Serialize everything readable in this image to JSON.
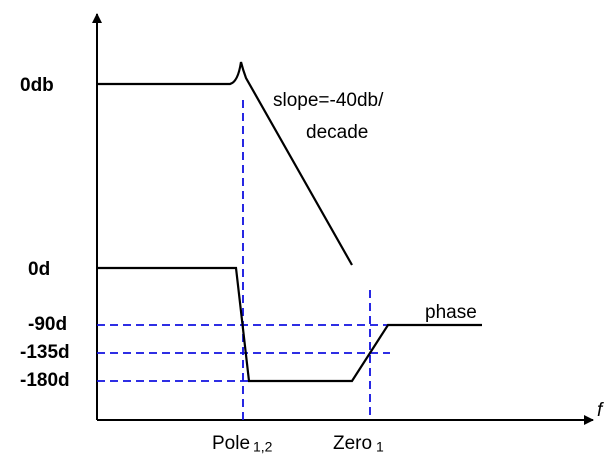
{
  "magnitude_labels": [
    "0db"
  ],
  "phase_labels": [
    "0d",
    "-90d",
    "-135d",
    "-180d"
  ],
  "annotations": {
    "slope_line1": "slope=-40db/",
    "slope_line2": "decade",
    "phase": "phase"
  },
  "x_labels": {
    "pole": "Pole",
    "pole_sub": "1,2",
    "zero": "Zero",
    "zero_sub": "1",
    "axis": "f"
  }
}
